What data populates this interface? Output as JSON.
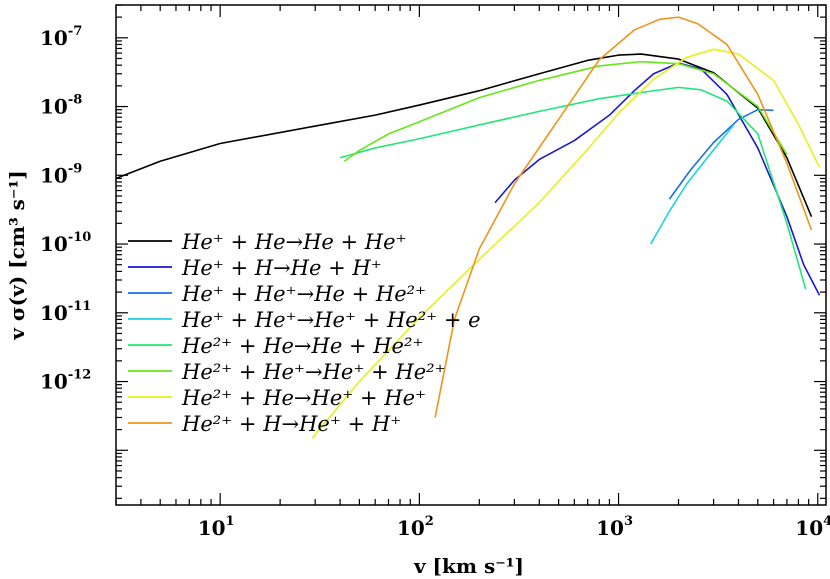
{
  "chart_data": {
    "type": "line",
    "xlabel": "v [km s⁻¹]",
    "ylabel": "v σ(v) [cm³ s⁻¹]",
    "xscale": "log",
    "yscale": "log",
    "xlim": [
      3,
      11000
    ],
    "ylim": [
      1.6e-14,
      3e-07
    ],
    "xticks": [
      {
        "value": 10,
        "base": "10",
        "exp": "1"
      },
      {
        "value": 100,
        "base": "10",
        "exp": "2"
      },
      {
        "value": 1000,
        "base": "10",
        "exp": "3"
      },
      {
        "value": 10000,
        "base": "10",
        "exp": "4"
      }
    ],
    "yticks": [
      {
        "value": 1e-12,
        "base": "10",
        "exp": "-12"
      },
      {
        "value": 1e-11,
        "base": "10",
        "exp": "-11"
      },
      {
        "value": 1e-10,
        "base": "10",
        "exp": "-10"
      },
      {
        "value": 1e-09,
        "base": "10",
        "exp": "-9"
      },
      {
        "value": 1e-08,
        "base": "10",
        "exp": "-8"
      },
      {
        "value": 1e-07,
        "base": "10",
        "exp": "-7"
      }
    ],
    "grid": false,
    "legend_position": "left",
    "series": [
      {
        "name": "He⁺ + He → He + He⁺",
        "color": "#000000",
        "points": [
          [
            3,
            9e-10
          ],
          [
            5,
            1.6e-09
          ],
          [
            10,
            2.9e-09
          ],
          [
            30,
            5.2e-09
          ],
          [
            60,
            7.5e-09
          ],
          [
            100,
            1.05e-08
          ],
          [
            200,
            1.7e-08
          ],
          [
            400,
            3e-08
          ],
          [
            700,
            4.7e-08
          ],
          [
            1000,
            5.6e-08
          ],
          [
            1300,
            5.8e-08
          ],
          [
            2000,
            4.9e-08
          ],
          [
            3000,
            3.1e-08
          ],
          [
            5000,
            9.5e-09
          ],
          [
            7000,
            1.8e-09
          ],
          [
            9300,
            2.5e-10
          ]
        ]
      },
      {
        "name": "He⁺ + H → He + H⁺",
        "color": "#1a1ad0",
        "points": [
          [
            240,
            4e-10
          ],
          [
            300,
            8.5e-10
          ],
          [
            400,
            1.7e-09
          ],
          [
            600,
            3.2e-09
          ],
          [
            900,
            7.5e-09
          ],
          [
            1200,
            1.7e-08
          ],
          [
            1500,
            3e-08
          ],
          [
            2000,
            4.3e-08
          ],
          [
            2600,
            3.5e-08
          ],
          [
            3500,
            1.5e-08
          ],
          [
            5000,
            2.5e-09
          ],
          [
            7000,
            2.5e-10
          ],
          [
            8500,
            5e-11
          ],
          [
            10200,
            1.8e-11
          ]
        ]
      },
      {
        "name": "He⁺ + He⁺ → He + He²⁺",
        "color": "#1a6ee6",
        "points": [
          [
            1800,
            4.5e-10
          ],
          [
            2300,
            1.2e-09
          ],
          [
            3000,
            3e-09
          ],
          [
            4000,
            6.5e-09
          ],
          [
            5000,
            9e-09
          ],
          [
            6000,
            8.8e-09
          ]
        ]
      },
      {
        "name": "He⁺ + He⁺ → He⁺ + He²⁺ + e",
        "color": "#1ad2e6",
        "points": [
          [
            1450,
            1e-10
          ],
          [
            1800,
            3e-10
          ],
          [
            2200,
            7.5e-10
          ],
          [
            2700,
            1.6e-09
          ],
          [
            3300,
            3.3e-09
          ],
          [
            3800,
            5.5e-09
          ]
        ]
      },
      {
        "name": "He²⁺ + He → He + He²⁺",
        "color": "#22e67a",
        "points": [
          [
            40,
            1.8e-09
          ],
          [
            60,
            2.5e-09
          ],
          [
            100,
            3.4e-09
          ],
          [
            200,
            5.4e-09
          ],
          [
            400,
            8.5e-09
          ],
          [
            800,
            1.3e-08
          ],
          [
            1300,
            1.6e-08
          ],
          [
            2000,
            1.9e-08
          ],
          [
            2600,
            1.75e-08
          ],
          [
            3500,
            1.2e-08
          ],
          [
            5000,
            4e-09
          ],
          [
            7000,
            2e-10
          ],
          [
            8700,
            2.2e-11
          ]
        ]
      },
      {
        "name": "He²⁺ + He⁺ → He⁺ + He²⁺",
        "color": "#66e61a",
        "points": [
          [
            42,
            1.6e-09
          ],
          [
            50,
            2.3e-09
          ],
          [
            70,
            4e-09
          ],
          [
            100,
            6e-09
          ],
          [
            200,
            1.35e-08
          ],
          [
            400,
            2.4e-08
          ],
          [
            800,
            3.9e-08
          ],
          [
            1300,
            4.5e-08
          ],
          [
            2000,
            4.2e-08
          ],
          [
            3000,
            3e-08
          ],
          [
            5000,
            1e-08
          ],
          [
            7000,
            2e-09
          ]
        ]
      },
      {
        "name": "He²⁺ + He → He⁺ + He⁺",
        "color": "#e6f01a",
        "points": [
          [
            29,
            1.5e-13
          ],
          [
            50,
            1e-12
          ],
          [
            100,
            8.5e-12
          ],
          [
            200,
            6e-11
          ],
          [
            400,
            4e-10
          ],
          [
            700,
            2.4e-09
          ],
          [
            1000,
            8e-09
          ],
          [
            1500,
            2.5e-08
          ],
          [
            2200,
            5.2e-08
          ],
          [
            3000,
            6.8e-08
          ],
          [
            4000,
            5.8e-08
          ],
          [
            6000,
            2.4e-08
          ],
          [
            8000,
            5.5e-09
          ],
          [
            10200,
            1.3e-09
          ]
        ]
      },
      {
        "name": "He²⁺ + H → He⁺ + H⁺",
        "color": "#f0941a",
        "points": [
          [
            120,
            3e-13
          ],
          [
            150,
            8e-12
          ],
          [
            200,
            8.5e-11
          ],
          [
            300,
            7.5e-10
          ],
          [
            500,
            6.5e-09
          ],
          [
            800,
            4.8e-08
          ],
          [
            1200,
            1.3e-07
          ],
          [
            1600,
            1.85e-07
          ],
          [
            2000,
            2e-07
          ],
          [
            2500,
            1.6e-07
          ],
          [
            3500,
            8e-08
          ],
          [
            5000,
            1.5e-08
          ],
          [
            7000,
            1.5e-09
          ],
          [
            9300,
            1.6e-10
          ]
        ]
      }
    ],
    "legend_items": [
      {
        "text": "He⁺ + He→He + He⁺"
      },
      {
        "text": "He⁺ + H→He + H⁺"
      },
      {
        "text": "He⁺ + He⁺→He + He²⁺"
      },
      {
        "text": "He⁺ + He⁺→He⁺ + He²⁺ + e"
      },
      {
        "text": "He²⁺ + He→He + He²⁺"
      },
      {
        "text": "He²⁺ + He⁺→He⁺ + He²⁺"
      },
      {
        "text": "He²⁺ + He→He⁺ + He⁺"
      },
      {
        "text": "He²⁺ + H→He⁺ + H⁺"
      }
    ]
  }
}
